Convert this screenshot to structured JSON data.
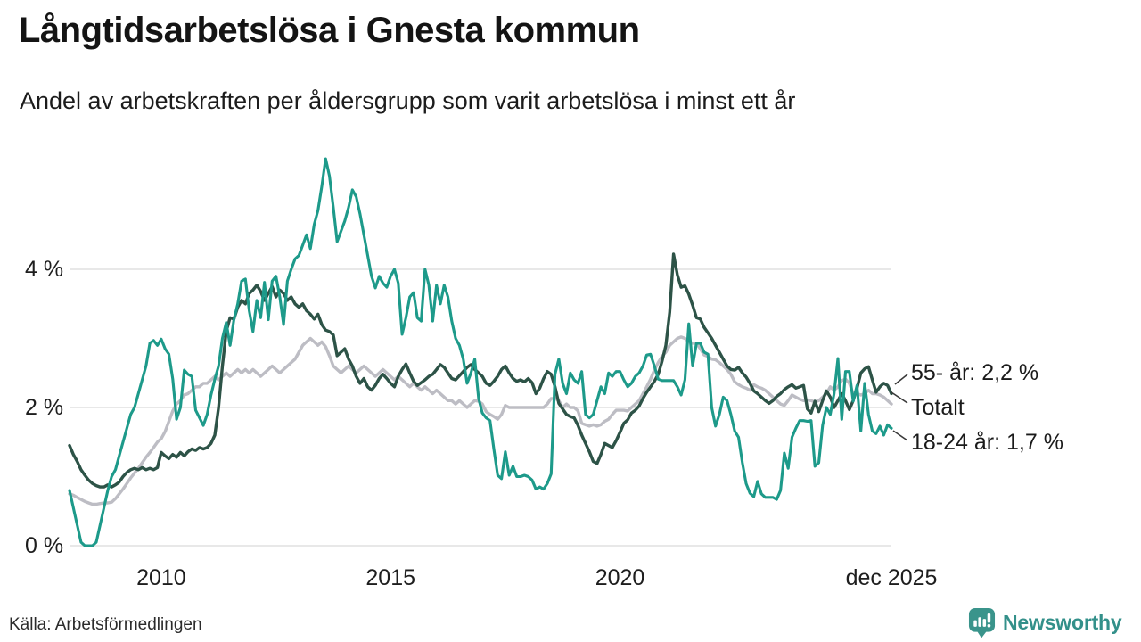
{
  "header": {
    "title": "Långtidsarbetslösa i Gnesta kommun",
    "subtitle": "Andel av arbetskraften per åldersgrupp som varit arbetslösa i minst ett år"
  },
  "footer": {
    "source": "Källa: Arbetsförmedlingen",
    "brand": "Newsworthy",
    "brand_color": "#33908a"
  },
  "chart_data": {
    "type": "line",
    "title": "Långtidsarbetslösa i Gnesta kommun",
    "subtitle": "Andel av arbetskraften per åldersgrupp som varit arbetslösa i minst ett år",
    "xlabel": "",
    "ylabel": "",
    "unit": "%",
    "grid": "horizontal",
    "x_start": 2008.0,
    "x_end": 2025.9167,
    "x_step_months": 1,
    "ylim": [
      0,
      5.8
    ],
    "y_ticks": [
      {
        "label": "0 %",
        "value": 0
      },
      {
        "label": "2 %",
        "value": 2
      },
      {
        "label": "4 %",
        "value": 4
      }
    ],
    "x_ticks": [
      {
        "label": "2010",
        "t": 2010.0
      },
      {
        "label": "2015",
        "t": 2015.0
      },
      {
        "label": "2020",
        "t": 2020.0
      },
      {
        "label": "dec 2025",
        "t": 2025.9167
      }
    ],
    "end_labels": [
      {
        "text": "55- år: 2,2 %"
      },
      {
        "text": "Totalt"
      },
      {
        "text": "18-24 år: 1,7 %"
      }
    ],
    "series": [
      {
        "name": "Totalt",
        "color": "#bdbdc4",
        "width": 3.4,
        "end_value": 2.05,
        "values": [
          0.75,
          0.73,
          0.7,
          0.67,
          0.64,
          0.62,
          0.6,
          0.6,
          0.61,
          0.62,
          0.62,
          0.63,
          0.68,
          0.75,
          0.82,
          0.9,
          0.98,
          1.05,
          1.12,
          1.2,
          1.28,
          1.35,
          1.42,
          1.5,
          1.55,
          1.65,
          1.8,
          1.95,
          2.05,
          2.1,
          2.18,
          2.2,
          2.25,
          2.3,
          2.3,
          2.35,
          2.35,
          2.4,
          2.45,
          2.4,
          2.45,
          2.5,
          2.45,
          2.5,
          2.55,
          2.5,
          2.55,
          2.5,
          2.55,
          2.5,
          2.45,
          2.5,
          2.55,
          2.6,
          2.55,
          2.5,
          2.55,
          2.6,
          2.65,
          2.7,
          2.8,
          2.9,
          2.95,
          3.0,
          2.95,
          2.9,
          2.95,
          2.88,
          2.75,
          2.6,
          2.55,
          2.5,
          2.55,
          2.6,
          2.55,
          2.5,
          2.55,
          2.6,
          2.55,
          2.5,
          2.45,
          2.5,
          2.55,
          2.5,
          2.45,
          2.4,
          2.45,
          2.4,
          2.35,
          2.3,
          2.35,
          2.3,
          2.25,
          2.3,
          2.25,
          2.2,
          2.25,
          2.2,
          2.15,
          2.1,
          2.1,
          2.05,
          2.1,
          2.05,
          2.0,
          2.05,
          2.1,
          2.09,
          2.05,
          1.94,
          1.9,
          1.87,
          1.83,
          1.9,
          2.03,
          2.0,
          2.0,
          2.0,
          2.0,
          2.0,
          2.0,
          2.0,
          2.0,
          2.0,
          2.0,
          2.05,
          2.13,
          2.13,
          2.1,
          2.0,
          2.05,
          2.0,
          2.0,
          1.95,
          1.77,
          1.75,
          1.73,
          1.75,
          1.73,
          1.75,
          1.8,
          1.83,
          1.9,
          1.96,
          1.96,
          1.96,
          1.95,
          2.0,
          2.05,
          2.1,
          2.2,
          2.3,
          2.41,
          2.54,
          2.65,
          2.74,
          2.8,
          2.9,
          2.95,
          3.0,
          3.02,
          3.0,
          2.95,
          2.93,
          2.93,
          2.85,
          2.76,
          2.74,
          2.7,
          2.69,
          2.65,
          2.6,
          2.55,
          2.48,
          2.37,
          2.33,
          2.3,
          2.28,
          2.25,
          2.33,
          2.3,
          2.28,
          2.25,
          2.2,
          2.15,
          2.1,
          2.05,
          2.03,
          2.1,
          2.18,
          2.15,
          2.12,
          2.1,
          2.11,
          2.1,
          2.08,
          2.1,
          2.15,
          2.2,
          2.3,
          2.25,
          2.3,
          2.39,
          2.41,
          2.35,
          2.2,
          2.2,
          2.18,
          2.2,
          2.25,
          2.2,
          2.2,
          2.18,
          2.15,
          2.1,
          2.05
        ]
      },
      {
        "name": "55- år",
        "color": "#2d5347",
        "width": 3.4,
        "end_value": 2.2,
        "values": [
          1.45,
          1.32,
          1.22,
          1.1,
          1.02,
          0.95,
          0.9,
          0.87,
          0.85,
          0.85,
          0.88,
          0.85,
          0.88,
          0.92,
          1.0,
          1.06,
          1.1,
          1.12,
          1.1,
          1.13,
          1.1,
          1.12,
          1.1,
          1.13,
          1.35,
          1.3,
          1.26,
          1.32,
          1.28,
          1.35,
          1.3,
          1.36,
          1.4,
          1.38,
          1.42,
          1.4,
          1.42,
          1.48,
          1.6,
          2.0,
          2.6,
          3.1,
          3.3,
          3.28,
          3.45,
          3.55,
          3.5,
          3.65,
          3.7,
          3.77,
          3.68,
          3.55,
          3.65,
          3.75,
          3.6,
          3.7,
          3.65,
          3.55,
          3.6,
          3.5,
          3.45,
          3.5,
          3.4,
          3.35,
          3.28,
          3.35,
          3.2,
          3.12,
          3.1,
          3.05,
          2.75,
          2.8,
          2.85,
          2.7,
          2.6,
          2.45,
          2.35,
          2.42,
          2.3,
          2.25,
          2.32,
          2.42,
          2.48,
          2.42,
          2.35,
          2.3,
          2.45,
          2.55,
          2.63,
          2.5,
          2.38,
          2.32,
          2.36,
          2.4,
          2.45,
          2.48,
          2.55,
          2.62,
          2.58,
          2.5,
          2.42,
          2.4,
          2.46,
          2.52,
          2.58,
          2.62,
          2.55,
          2.5,
          2.45,
          2.35,
          2.32,
          2.38,
          2.45,
          2.55,
          2.6,
          2.5,
          2.42,
          2.38,
          2.4,
          2.37,
          2.42,
          2.36,
          2.2,
          2.28,
          2.42,
          2.52,
          2.48,
          2.3,
          2.06,
          1.98,
          1.9,
          1.87,
          1.85,
          1.74,
          1.6,
          1.48,
          1.36,
          1.22,
          1.19,
          1.32,
          1.48,
          1.45,
          1.42,
          1.52,
          1.64,
          1.77,
          1.82,
          1.92,
          1.96,
          2.02,
          2.13,
          2.22,
          2.3,
          2.38,
          2.48,
          2.67,
          2.9,
          3.38,
          4.22,
          3.92,
          3.74,
          3.76,
          3.64,
          3.48,
          3.3,
          3.28,
          3.16,
          3.08,
          3.0,
          2.9,
          2.8,
          2.7,
          2.6,
          2.55,
          2.54,
          2.58,
          2.5,
          2.44,
          2.35,
          2.24,
          2.2,
          2.15,
          2.1,
          2.06,
          2.1,
          2.16,
          2.2,
          2.26,
          2.3,
          2.33,
          2.28,
          2.3,
          2.32,
          1.98,
          1.92,
          2.09,
          1.94,
          2.1,
          2.24,
          2.15,
          2.0,
          2.1,
          2.2,
          2.1,
          1.97,
          2.1,
          2.28,
          2.5,
          2.56,
          2.59,
          2.4,
          2.22,
          2.3,
          2.35,
          2.32,
          2.2
        ]
      },
      {
        "name": "18-24 år",
        "color": "#1d9a8a",
        "width": 3.1,
        "end_value": 1.7,
        "values": [
          0.8,
          0.55,
          0.3,
          0.05,
          0.0,
          0.0,
          0.0,
          0.05,
          0.3,
          0.55,
          0.8,
          1.0,
          1.1,
          1.3,
          1.5,
          1.7,
          1.9,
          2.0,
          2.2,
          2.4,
          2.6,
          2.93,
          2.97,
          2.9,
          2.99,
          2.85,
          2.77,
          2.41,
          1.83,
          2.0,
          2.54,
          2.48,
          2.45,
          1.96,
          1.85,
          1.74,
          1.9,
          2.18,
          2.41,
          2.6,
          3.0,
          3.23,
          2.9,
          3.27,
          3.5,
          3.83,
          3.86,
          3.4,
          3.1,
          3.55,
          3.3,
          3.81,
          3.27,
          3.83,
          3.9,
          3.6,
          3.2,
          3.83,
          4.0,
          4.15,
          4.2,
          4.35,
          4.5,
          4.3,
          4.65,
          4.85,
          5.2,
          5.6,
          5.35,
          4.9,
          4.4,
          4.55,
          4.7,
          4.9,
          5.15,
          5.05,
          4.8,
          4.5,
          4.2,
          3.9,
          3.73,
          3.9,
          3.8,
          3.74,
          3.9,
          4.0,
          3.8,
          3.06,
          3.3,
          3.6,
          3.66,
          3.3,
          3.25,
          4.0,
          3.77,
          3.25,
          3.77,
          3.5,
          3.77,
          3.6,
          3.25,
          3.0,
          2.9,
          2.7,
          2.35,
          2.5,
          2.7,
          2.13,
          1.92,
          1.85,
          1.81,
          1.4,
          1.02,
          0.97,
          1.36,
          1.02,
          1.15,
          1.0,
          1.0,
          1.02,
          1.0,
          0.95,
          0.82,
          0.85,
          0.82,
          0.9,
          1.04,
          2.48,
          2.7,
          2.35,
          2.2,
          2.5,
          2.4,
          2.35,
          2.52,
          1.9,
          1.85,
          1.9,
          2.1,
          2.3,
          2.2,
          2.5,
          2.45,
          2.52,
          2.52,
          2.4,
          2.3,
          2.35,
          2.45,
          2.5,
          2.6,
          2.76,
          2.77,
          2.6,
          2.41,
          2.39,
          2.39,
          2.39,
          2.39,
          2.3,
          2.18,
          2.4,
          3.21,
          2.6,
          2.93,
          2.93,
          2.8,
          2.77,
          2.0,
          1.73,
          1.9,
          2.15,
          2.1,
          1.9,
          1.66,
          1.57,
          1.2,
          0.9,
          0.76,
          0.71,
          0.93,
          0.75,
          0.7,
          0.7,
          0.7,
          0.67,
          0.8,
          1.34,
          1.12,
          1.57,
          1.7,
          1.81,
          1.81,
          1.8,
          1.81,
          1.15,
          1.2,
          1.74,
          2.0,
          1.9,
          2.2,
          2.71,
          1.83,
          2.52,
          2.52,
          2.09,
          2.32,
          1.66,
          2.35,
          1.9,
          1.66,
          1.62,
          1.73,
          1.6,
          1.75,
          1.7
        ]
      }
    ]
  }
}
